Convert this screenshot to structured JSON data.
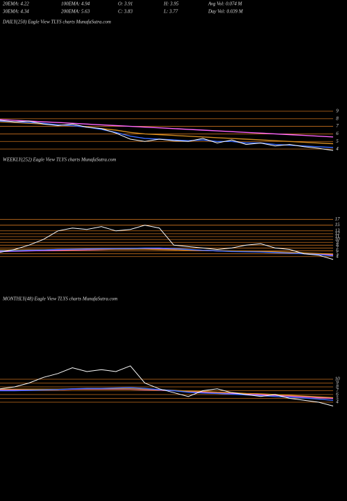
{
  "header": {
    "rows": [
      [
        "20EMA: 4.22",
        "100EMA: 4.94",
        "O: 3.91",
        "H: 3.95",
        "Avg Vol: 0.074  M"
      ],
      [
        "30EMA: 4.34",
        "200EMA: 5.63",
        "C: 3.83",
        "L: 3.77",
        "Day Vol: 0.039 M"
      ]
    ]
  },
  "chart_data": [
    {
      "type": "line",
      "title": "DAILY(250) Eagle   View  TLYS charts MunafaSutra.com",
      "categories": [
        null,
        null,
        null,
        null,
        null,
        null,
        null,
        null,
        null,
        null,
        null,
        null,
        null,
        null,
        null,
        null,
        null,
        null,
        null,
        null,
        null,
        null,
        null,
        null
      ],
      "ylim": [
        3,
        10
      ],
      "yticks": [
        4,
        5,
        6,
        7,
        8,
        9
      ],
      "series": [
        {
          "color": "#ff66ff",
          "values": [
            7.9,
            7.8,
            7.7,
            7.6,
            7.5,
            7.4,
            7.3,
            7.2,
            7.1,
            7.0,
            6.9,
            6.8,
            6.7,
            6.6,
            6.5,
            6.4,
            6.3,
            6.2,
            6.1,
            6.0,
            5.9,
            5.8,
            5.7,
            5.6
          ]
        },
        {
          "color": "#d08a20",
          "values": [
            7.6,
            7.5,
            7.4,
            7.3,
            7.2,
            7.1,
            6.9,
            6.7,
            6.5,
            6.2,
            6.0,
            5.9,
            5.8,
            5.7,
            5.6,
            5.5,
            5.4,
            5.3,
            5.2,
            5.1,
            5.0,
            4.9,
            4.8,
            4.7
          ]
        },
        {
          "color": "#3a6cff",
          "values": [
            7.7,
            7.6,
            7.5,
            7.4,
            7.2,
            7.1,
            6.9,
            6.6,
            6.2,
            5.7,
            5.4,
            5.3,
            5.2,
            5.1,
            5.2,
            5.0,
            5.0,
            4.8,
            4.8,
            4.6,
            4.5,
            4.4,
            4.3,
            4.2
          ]
        },
        {
          "color": "#ffffff",
          "values": [
            7.8,
            7.6,
            7.7,
            7.3,
            7.1,
            7.3,
            6.9,
            6.7,
            6.1,
            5.3,
            5.0,
            5.3,
            5.1,
            5.0,
            5.4,
            4.8,
            5.2,
            4.6,
            4.8,
            4.4,
            4.6,
            4.3,
            4.1,
            3.8
          ]
        }
      ]
    },
    {
      "type": "line",
      "title": "WEEKLY(252) Eagle   View  TLYS charts MunafaSutra.com",
      "categories": [
        null,
        null,
        null,
        null,
        null,
        null,
        null,
        null,
        null,
        null,
        null,
        null,
        null,
        null,
        null,
        null,
        null,
        null,
        null,
        null,
        null,
        null,
        null,
        null
      ],
      "ylim": [
        2,
        20
      ],
      "yticks": [
        4,
        5,
        6,
        7,
        8,
        9,
        10,
        11,
        12,
        13,
        15,
        17
      ],
      "series": [
        {
          "color": "#ff66ff",
          "values": [
            5.8,
            5.9,
            6,
            6.1,
            6.2,
            6.3,
            6.4,
            6.5,
            6.6,
            6.6,
            6.7,
            6.7,
            6.5,
            6.3,
            6.2,
            6,
            5.9,
            5.8,
            5.7,
            5.5,
            5.3,
            5.1,
            4.9,
            4.6
          ]
        },
        {
          "color": "#d08a20",
          "values": [
            6.3,
            6.3,
            6.4,
            6.4,
            6.5,
            6.5,
            6.6,
            6.6,
            6.6,
            6.6,
            6.6,
            6.5,
            6.4,
            6.3,
            6.2,
            6.1,
            6,
            5.9,
            5.8,
            5.7,
            5.5,
            5.3,
            5.1,
            4.9
          ]
        },
        {
          "color": "#3a6cff",
          "values": [
            6,
            6,
            6.2,
            6.3,
            6.5,
            6.6,
            6.7,
            6.8,
            6.8,
            6.9,
            7,
            7,
            6.8,
            6.5,
            6.2,
            6,
            5.8,
            5.7,
            5.6,
            5.4,
            5.2,
            5,
            4.7,
            4.3
          ]
        },
        {
          "color": "#ffffff",
          "values": [
            5.5,
            6.5,
            8,
            10,
            13,
            14,
            13.5,
            14.5,
            13,
            13.5,
            15,
            14,
            8,
            7.5,
            7,
            6.5,
            7,
            8,
            8.5,
            7,
            6.5,
            5,
            4.5,
            3
          ]
        }
      ]
    },
    {
      "type": "line",
      "title": "MONTHLY(48) Eagle   View  TLYS charts MunafaSutra.com",
      "categories": [
        null,
        null,
        null,
        null,
        null,
        null,
        null,
        null,
        null,
        null,
        null,
        null,
        null,
        null,
        null,
        null,
        null,
        null,
        null,
        null,
        null,
        null,
        null,
        null
      ],
      "ylim": [
        0,
        16
      ],
      "yticks": [
        4,
        5,
        6,
        7,
        8,
        9,
        10
      ],
      "series": [
        {
          "color": "#ff66ff",
          "values": [
            7.2,
            7.2,
            7.2,
            7.3,
            7.3,
            7.4,
            7.4,
            7.4,
            7.4,
            7.4,
            7.3,
            7.2,
            7,
            6.8,
            6.6,
            6.5,
            6.3,
            6.1,
            5.9,
            5.8,
            5.6,
            5.4,
            5.2,
            5
          ]
        },
        {
          "color": "#d08a20",
          "values": [
            7.4,
            7.4,
            7.4,
            7.4,
            7.4,
            7.5,
            7.5,
            7.5,
            7.5,
            7.5,
            7.4,
            7.3,
            7.1,
            6.9,
            6.8,
            6.6,
            6.5,
            6.3,
            6.2,
            6,
            5.8,
            5.6,
            5.4,
            5.2
          ]
        },
        {
          "color": "#3a6cff",
          "values": [
            7,
            7,
            7.1,
            7.2,
            7.3,
            7.5,
            7.6,
            7.6,
            7.7,
            7.8,
            7.6,
            7.3,
            7,
            6.6,
            6.4,
            6.3,
            6.1,
            5.9,
            5.7,
            5.5,
            5.3,
            5.1,
            4.8,
            4.5
          ]
        },
        {
          "color": "#ffffff",
          "values": [
            7.5,
            8,
            9,
            10.5,
            11.5,
            13,
            12,
            12.5,
            12,
            13.5,
            9,
            7.5,
            6.5,
            5.5,
            7,
            7.5,
            6.5,
            6,
            5.5,
            6,
            5,
            4.5,
            4,
            3
          ]
        }
      ]
    }
  ]
}
